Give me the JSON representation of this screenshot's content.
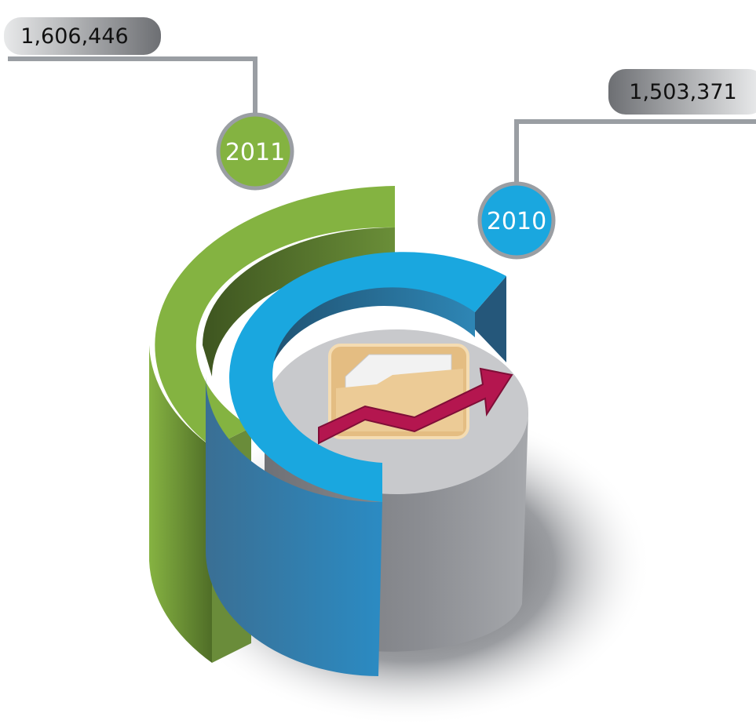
{
  "items": [
    {
      "year": "2011",
      "value": "1,606,446"
    },
    {
      "year": "2010",
      "value": "1,503,371"
    }
  ]
}
